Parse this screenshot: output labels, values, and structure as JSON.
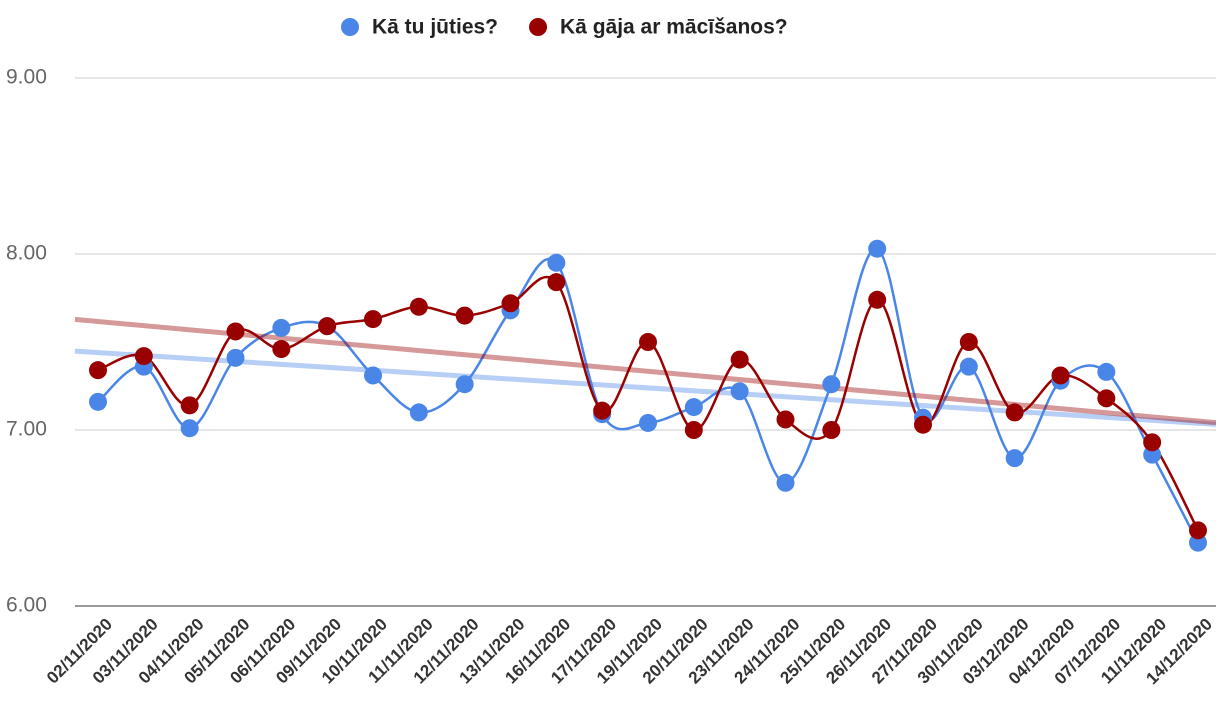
{
  "chart_data": {
    "type": "line",
    "categories": [
      "02/11/2020",
      "03/11/2020",
      "04/11/2020",
      "05/11/2020",
      "06/11/2020",
      "09/11/2020",
      "10/11/2020",
      "11/11/2020",
      "12/11/2020",
      "13/11/2020",
      "16/11/2020",
      "17/11/2020",
      "19/11/2020",
      "20/11/2020",
      "23/11/2020",
      "24/11/2020",
      "25/11/2020",
      "26/11/2020",
      "27/11/2020",
      "30/11/2020",
      "03/12/2020",
      "04/12/2020",
      "07/12/2020",
      "11/12/2020",
      "14/12/2020"
    ],
    "series": [
      {
        "name": "Kā tu jūties?",
        "color": "#4a86e8",
        "values": [
          7.16,
          7.36,
          7.01,
          7.41,
          7.58,
          7.59,
          7.31,
          7.1,
          7.26,
          7.68,
          7.95,
          7.09,
          7.04,
          7.13,
          7.22,
          6.7,
          7.26,
          8.03,
          7.07,
          7.36,
          6.84,
          7.28,
          7.33,
          6.86,
          6.36
        ]
      },
      {
        "name": "Kā gāja ar mācīšanos?",
        "color": "#990000",
        "values": [
          7.34,
          7.42,
          7.14,
          7.56,
          7.46,
          7.59,
          7.63,
          7.7,
          7.65,
          7.72,
          7.84,
          7.11,
          7.5,
          7.0,
          7.4,
          7.06,
          7.0,
          7.74,
          7.03,
          7.5,
          7.1,
          7.31,
          7.18,
          6.93,
          6.43
        ]
      }
    ],
    "ylim": [
      6,
      9
    ],
    "yticks": [
      {
        "value": 6,
        "label": "6.00"
      },
      {
        "value": 7,
        "label": "7.00"
      },
      {
        "value": 8,
        "label": "8.00"
      },
      {
        "value": 9,
        "label": "9.00"
      }
    ],
    "grid": true,
    "smooth": true,
    "trendline": true,
    "legend": "top"
  }
}
